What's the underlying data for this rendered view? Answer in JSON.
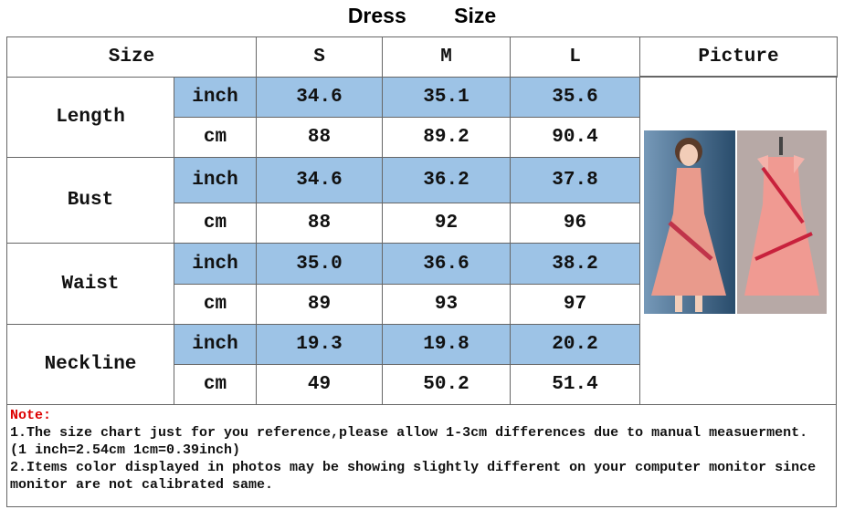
{
  "title": "Dress Size",
  "table": {
    "header": [
      "Size",
      "S",
      "M",
      "L",
      "Picture"
    ],
    "rows": [
      {
        "label": "Length",
        "units": [
          {
            "unit": "inch",
            "values": [
              "34.6",
              "35.1",
              "35.6"
            ]
          },
          {
            "unit": "cm",
            "values": [
              "88",
              "89.2",
              "90.4"
            ]
          }
        ]
      },
      {
        "label": "Bust",
        "units": [
          {
            "unit": "inch",
            "values": [
              "34.6",
              "36.2",
              "37.8"
            ]
          },
          {
            "unit": "cm",
            "values": [
              "88",
              "92",
              "96"
            ]
          }
        ]
      },
      {
        "label": "Waist",
        "units": [
          {
            "unit": "inch",
            "values": [
              "35.0",
              "36.6",
              "38.2"
            ]
          },
          {
            "unit": "cm",
            "values": [
              "89",
              "93",
              "97"
            ]
          }
        ]
      },
      {
        "label": "Neckline",
        "units": [
          {
            "unit": "inch",
            "values": [
              "19.3",
              "19.8",
              "20.2"
            ]
          },
          {
            "unit": "cm",
            "values": [
              "49",
              "50.2",
              "51.4"
            ]
          }
        ]
      }
    ]
  },
  "note": {
    "title": "Note:",
    "lines": [
      "1.The size chart just for you reference,please allow 1-3cm differences due to manual measuerment.",
      "(1 inch=2.54cm 1cm=0.39inch)",
      "2.Items color displayed in photos may be showing slightly different on your computer monitor since monitor are not calibrated same."
    ]
  }
}
